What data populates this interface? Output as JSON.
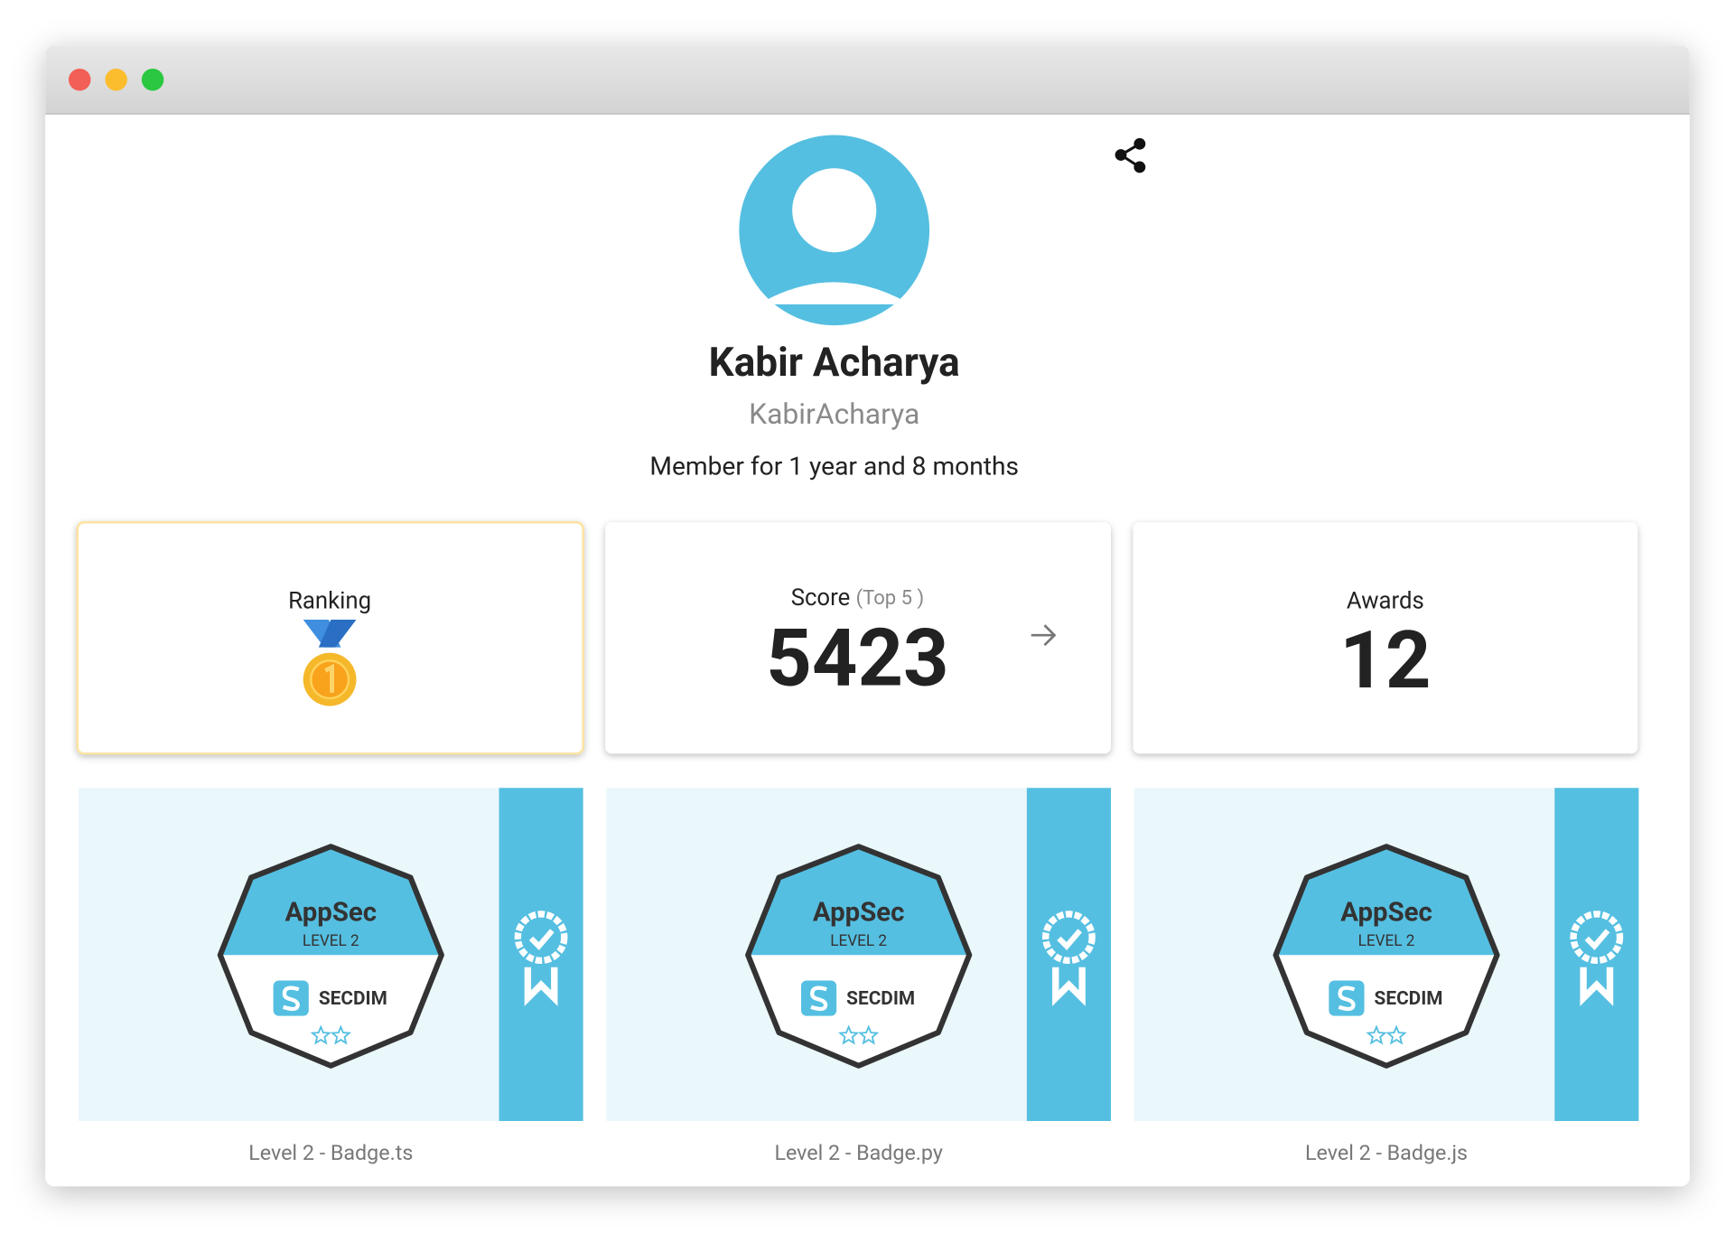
{
  "profile": {
    "name": "Kabir Acharya",
    "username": "KabirAcharya",
    "member": "Member for 1 year and 8 months"
  },
  "stats": {
    "ranking_label": "Ranking",
    "score_label": "Score",
    "score_note": "(Top 5 )",
    "score": "5423",
    "awards_label": "Awards",
    "awards": "12"
  },
  "badges": [
    {
      "title": "AppSec",
      "level": "LEVEL 2",
      "brand": "SECDIM",
      "caption": "Level 2 - Badge.ts"
    },
    {
      "title": "AppSec",
      "level": "LEVEL 2",
      "brand": "SECDIM",
      "caption": "Level 2 - Badge.py"
    },
    {
      "title": "AppSec",
      "level": "LEVEL 2",
      "brand": "SECDIM",
      "caption": "Level 2 - Badge.js"
    }
  ]
}
